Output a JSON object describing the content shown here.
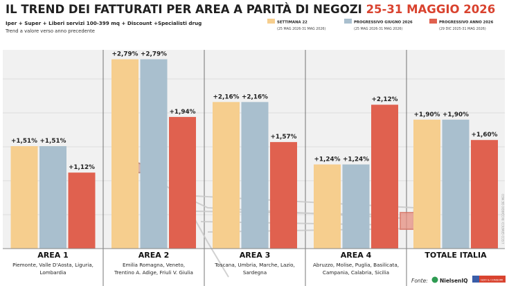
{
  "title_main": "IL TREND DEI FATTURATI PER AREA A PARITÀ DI NEGOZI",
  "title_dates": "25-31 MAGGIO 2026",
  "subtitle": "Iper + Super + Liberi servizi 100-399 mq + Discount +Specialisti drug",
  "note": "Trend a valore verso anno precedente",
  "credit": "L'ECO GRAFICO: RICCARDO DE MEO",
  "legend": [
    {
      "label": "SETTIMANA 22",
      "sublabel": "(25 MAG 2026-31 MAG 2026)",
      "color": "#F6CE8E"
    },
    {
      "label": "PROGRESSIVO GIUGNO 2026",
      "sublabel": "(25 MAG 2026-31 MAG 2026)",
      "color": "#A9BFCE"
    },
    {
      "label": "PROGRESSIVO ANNO 2026",
      "sublabel": "(29 DIC 2025-31 MAG 2026)",
      "color": "#E0614F"
    }
  ],
  "chart_data": {
    "type": "bar",
    "ylim": [
      0,
      3
    ],
    "categories": [
      "AREA 1",
      "AREA 2",
      "AREA 3",
      "AREA 4",
      "TOTALE ITALIA"
    ],
    "category_regions": [
      [
        "Piemonte, Valle D'Aosta, Liguria,",
        "Lombardia"
      ],
      [
        "Emilia Romagna, Veneto,",
        "Trentino A. Adige, Friuli V. Giulia"
      ],
      [
        "Toscana, Umbria, Marche, Lazio,",
        "Sardegna"
      ],
      [
        "Abruzzo, Molise, Puglia, Basilicata,",
        "Campania, Calabria, Sicilia"
      ],
      []
    ],
    "series": [
      {
        "name": "SETTIMANA 22",
        "values": [
          1.51,
          2.79,
          2.16,
          1.24,
          1.9
        ],
        "labels": [
          "+1,51%",
          "+2,79%",
          "+2,16%",
          "+1,24%",
          "+1,90%"
        ],
        "color": "#F6CE8E"
      },
      {
        "name": "PROGRESSIVO GIUGNO 2026",
        "values": [
          1.51,
          2.79,
          2.16,
          1.24,
          1.9
        ],
        "labels": [
          "+1,51%",
          "+2,79%",
          "+2,16%",
          "+1,24%",
          "+1,90%"
        ],
        "color": "#A9BFCE"
      },
      {
        "name": "PROGRESSIVO ANNO 2026",
        "values": [
          1.12,
          1.94,
          1.57,
          2.12,
          1.6
        ],
        "labels": [
          "+1,12%",
          "+1,94%",
          "+1,57%",
          "+2,12%",
          "+1,60%"
        ],
        "color": "#E0614F"
      }
    ],
    "grid": true
  },
  "source_label": "Fonte:",
  "source_logos": [
    "NielsenIQ",
    "GDO & CONSUMI"
  ]
}
